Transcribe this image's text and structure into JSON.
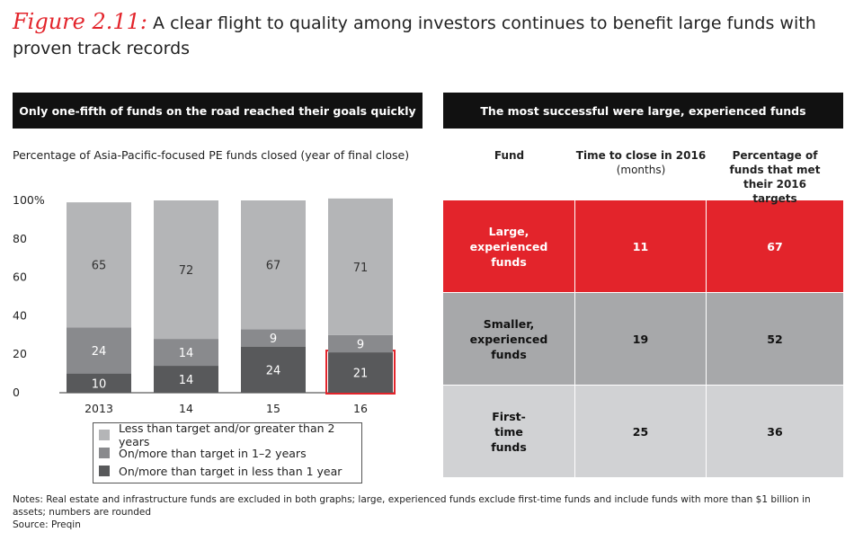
{
  "figure": {
    "label": "Figure 2.11:",
    "title": "A clear flight to quality among investors continues to benefit large funds with proven track records"
  },
  "left_panel": {
    "banner": "Only one-fifth of funds on the road reached their goals quickly",
    "subtitle": "Percentage of Asia-Pacific-focused PE funds closed (year of final close)"
  },
  "right_panel": {
    "banner": "The most successful were large, experienced funds",
    "headers": {
      "fund": "Fund",
      "time_main": "Time to close in 2016",
      "time_sub": "(months)",
      "pct": "Percentage of funds that met their 2016 targets"
    },
    "rows": [
      {
        "fund": "Large, experienced funds",
        "time": "11",
        "pct": "67"
      },
      {
        "fund": "Smaller, experienced funds",
        "time": "19",
        "pct": "52"
      },
      {
        "fund": "First-time funds",
        "time": "25",
        "pct": "36"
      }
    ]
  },
  "chart_data": {
    "type": "bar",
    "stacked": true,
    "categories": [
      "2013",
      "14",
      "15",
      "16"
    ],
    "series": [
      {
        "name": "On/more than target in less than 1 year",
        "values": [
          10,
          14,
          24,
          21
        ],
        "color": "#58595b"
      },
      {
        "name": "On/more than target in 1–2 years",
        "values": [
          24,
          14,
          9,
          9
        ],
        "color": "#898a8d"
      },
      {
        "name": "Less than target and/or greater than 2 years",
        "values": [
          65,
          72,
          67,
          71
        ],
        "color": "#b4b5b7"
      }
    ],
    "yticks": [
      "0",
      "20",
      "40",
      "60",
      "80",
      "100%"
    ],
    "ylim": [
      0,
      100
    ],
    "highlight": {
      "category": "16",
      "series": "On/more than target in less than 1 year",
      "color": "#e3242b"
    },
    "legend": [
      {
        "label": "Less than target and/or greater than 2 years",
        "color": "#b4b5b7"
      },
      {
        "label": "On/more than target in 1–2 years",
        "color": "#898a8d"
      },
      {
        "label": "On/more than target in less than 1 year",
        "color": "#58595b"
      }
    ]
  },
  "notes": {
    "text": "Notes: Real estate and infrastructure funds are excluded in both graphs; large, experienced funds exclude first-time funds and include funds with more than $1 billion in assets; numbers are rounded",
    "source": "Source: Preqin"
  }
}
